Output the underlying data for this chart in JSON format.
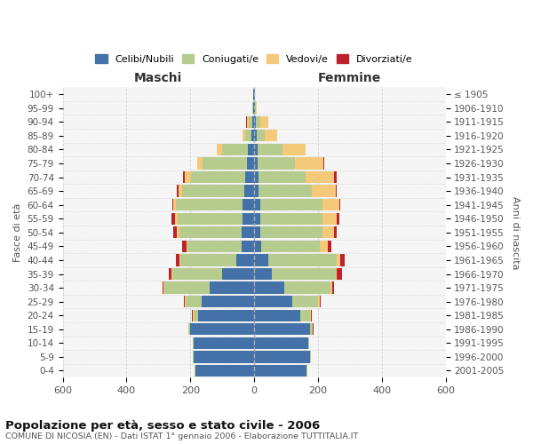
{
  "age_groups": [
    "0-4",
    "5-9",
    "10-14",
    "15-19",
    "20-24",
    "25-29",
    "30-34",
    "35-39",
    "40-44",
    "45-49",
    "50-54",
    "55-59",
    "60-64",
    "65-69",
    "70-74",
    "75-79",
    "80-84",
    "85-89",
    "90-94",
    "95-99",
    "100+"
  ],
  "birth_years": [
    "2001-2005",
    "1996-2000",
    "1991-1995",
    "1986-1990",
    "1981-1985",
    "1976-1980",
    "1971-1975",
    "1966-1970",
    "1961-1965",
    "1956-1960",
    "1951-1955",
    "1946-1950",
    "1941-1945",
    "1936-1940",
    "1931-1935",
    "1926-1930",
    "1921-1925",
    "1916-1920",
    "1911-1915",
    "1906-1910",
    "≤ 1905"
  ],
  "males": {
    "celibi": [
      185,
      190,
      190,
      200,
      175,
      165,
      140,
      100,
      55,
      38,
      40,
      35,
      35,
      30,
      28,
      22,
      20,
      8,
      5,
      2,
      2
    ],
    "coniugati": [
      1,
      2,
      2,
      5,
      15,
      50,
      140,
      155,
      175,
      170,
      195,
      205,
      210,
      195,
      170,
      140,
      80,
      20,
      12,
      3,
      2
    ],
    "vedovi": [
      0,
      0,
      0,
      0,
      2,
      2,
      3,
      3,
      5,
      5,
      8,
      8,
      8,
      12,
      20,
      15,
      18,
      8,
      5,
      0,
      0
    ],
    "divorziati": [
      0,
      0,
      0,
      0,
      2,
      3,
      5,
      10,
      10,
      12,
      10,
      10,
      3,
      5,
      5,
      0,
      0,
      0,
      3,
      0,
      0
    ]
  },
  "females": {
    "nubili": [
      165,
      175,
      170,
      175,
      145,
      120,
      95,
      55,
      45,
      22,
      20,
      18,
      18,
      15,
      15,
      12,
      10,
      8,
      5,
      2,
      2
    ],
    "coniugate": [
      1,
      2,
      3,
      8,
      30,
      80,
      145,
      200,
      215,
      185,
      195,
      195,
      195,
      165,
      145,
      115,
      80,
      25,
      15,
      3,
      2
    ],
    "vedove": [
      0,
      0,
      0,
      1,
      3,
      5,
      5,
      5,
      10,
      25,
      35,
      45,
      55,
      75,
      90,
      90,
      70,
      40,
      25,
      2,
      0
    ],
    "divorziate": [
      0,
      0,
      0,
      1,
      2,
      5,
      5,
      15,
      15,
      10,
      8,
      8,
      3,
      5,
      8,
      3,
      0,
      0,
      0,
      0,
      0
    ]
  },
  "colors": {
    "celibi": "#4472a8",
    "coniugati": "#b5cc8e",
    "vedovi": "#f5c97a",
    "divorziati": "#c0222c"
  },
  "xlim": 600,
  "title": "Popolazione per età, sesso e stato civile - 2006",
  "subtitle": "COMUNE DI NICOSIA (EN) - Dati ISTAT 1° gennaio 2006 - Elaborazione TUTTITALIA.IT",
  "xlabel_left": "Maschi",
  "xlabel_right": "Femmine",
  "ylabel_left": "Fasce di età",
  "ylabel_right": "Anni di nascita",
  "legend_labels": [
    "Celibi/Nubili",
    "Coniugati/e",
    "Vedovi/e",
    "Divorziati/e"
  ],
  "bg_color": "#ffffff",
  "plot_bg": "#f5f5f5",
  "grid_color": "#cccccc"
}
